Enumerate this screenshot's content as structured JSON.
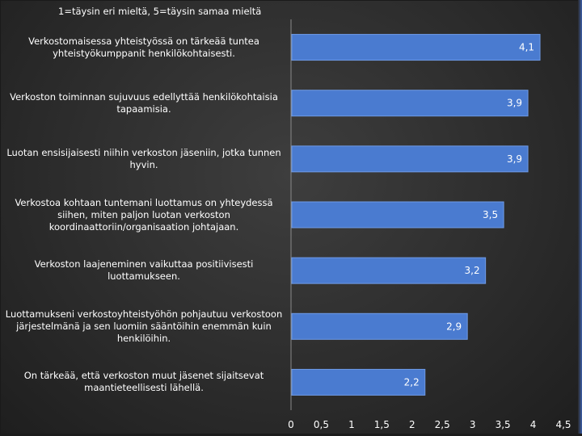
{
  "chart_data": {
    "type": "bar",
    "orientation": "horizontal",
    "title": "1=täysin eri mieltä, 5=täysin samaa mieltä",
    "categories": [
      "Verkostomaisessa yhteistyössä on tärkeää tuntea yhteistyökumppanit henkilökohtaisesti.",
      "Verkoston toiminnan sujuvuus edellyttää henkilökohtaisia tapaamisia.",
      "Luotan ensisijaisesti niihin verkoston jäseniin, jotka tunnen hyvin.",
      "Verkostoa kohtaan tuntemani luottamus on yhteydessä siihen, miten paljon luotan verkoston koordinaattoriin/organisaation johtajaan.",
      "Verkoston laajeneminen vaikuttaa positiivisesti luottamukseen.",
      "Luottamukseni verkostoyhteistyöhön pohjautuu verkostoon järjestelmänä ja sen luomiin sääntöihin enemmän kuin henkilöihin.",
      "On tärkeää, että verkoston muut jäsenet sijaitsevat maantieteellisesti lähellä."
    ],
    "values": [
      4.1,
      3.9,
      3.9,
      3.5,
      3.2,
      2.9,
      2.2
    ],
    "data_labels": [
      "4,1",
      "3,9",
      "3,9",
      "3,5",
      "3,2",
      "2,9",
      "2,2"
    ],
    "xlim": [
      0,
      4.5
    ],
    "xticks": [
      0,
      0.5,
      1,
      1.5,
      2,
      2.5,
      3,
      3.5,
      4,
      4.5
    ],
    "xtick_labels": [
      "0",
      "0,5",
      "1",
      "1,5",
      "2",
      "2,5",
      "3",
      "3,5",
      "4",
      "4,5"
    ],
    "xlabel": "",
    "ylabel": "",
    "grid": false,
    "legend": "none",
    "colors": {
      "bar": "#4a7bd0",
      "bar_edge": "#6f9be6",
      "text": "#ffffff",
      "axis": "#8a8a8a"
    }
  }
}
